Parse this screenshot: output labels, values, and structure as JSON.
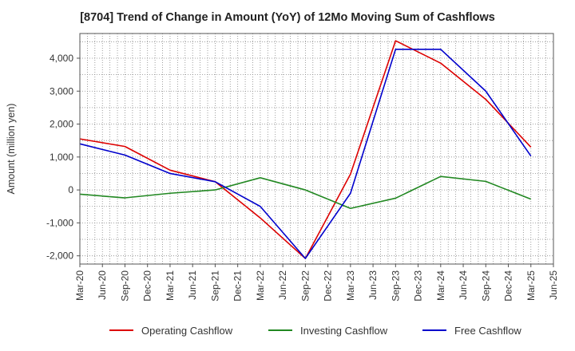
{
  "chart_data": {
    "type": "line",
    "title": "[8704]  Trend of Change in Amount (YoY) of 12Mo Moving Sum of Cashflows",
    "xlabel": "",
    "ylabel": "Amount (million yen)",
    "ylim": [
      -2250,
      4750
    ],
    "yticks": [
      -2000,
      -1000,
      0,
      1000,
      2000,
      3000,
      4000
    ],
    "ytick_labels": [
      "-2,000",
      "-1,000",
      "0",
      "1,000",
      "2,000",
      "3,000",
      "4,000"
    ],
    "x": [
      "Mar-20",
      "Jun-20",
      "Sep-20",
      "Dec-20",
      "Mar-21",
      "Jun-21",
      "Sep-21",
      "Dec-21",
      "Mar-22",
      "Jun-22",
      "Sep-22",
      "Dec-22",
      "Mar-23",
      "Jun-23",
      "Sep-23",
      "Dec-23",
      "Mar-24",
      "Jun-24",
      "Sep-24",
      "Dec-24",
      "Mar-25",
      "Jun-25"
    ],
    "grid": true,
    "legend_position": "bottom",
    "series": [
      {
        "name": "Operating Cashflow",
        "color": "#dd0000",
        "x": [
          "Mar-20",
          "Sep-20",
          "Mar-21",
          "Sep-21",
          "Mar-22",
          "Sep-22",
          "Mar-23",
          "Sep-23",
          "Mar-24",
          "Sep-24",
          "Mar-25"
        ],
        "values": [
          1550,
          1320,
          600,
          250,
          -850,
          -2080,
          480,
          4530,
          3850,
          2750,
          1300
        ]
      },
      {
        "name": "Investing Cashflow",
        "color": "#228822",
        "x": [
          "Mar-20",
          "Sep-20",
          "Mar-21",
          "Sep-21",
          "Mar-22",
          "Sep-22",
          "Mar-23",
          "Sep-23",
          "Mar-24",
          "Sep-24",
          "Mar-25"
        ],
        "values": [
          -130,
          -240,
          -100,
          0,
          370,
          0,
          -560,
          -250,
          410,
          260,
          -280
        ]
      },
      {
        "name": "Free Cashflow",
        "color": "#0000cc",
        "x": [
          "Mar-20",
          "Sep-20",
          "Mar-21",
          "Sep-21",
          "Mar-22",
          "Sep-22",
          "Mar-23",
          "Sep-23",
          "Mar-24",
          "Sep-24",
          "Mar-25"
        ],
        "values": [
          1400,
          1060,
          500,
          250,
          -500,
          -2080,
          -100,
          4270,
          4270,
          3000,
          1030
        ]
      }
    ]
  }
}
